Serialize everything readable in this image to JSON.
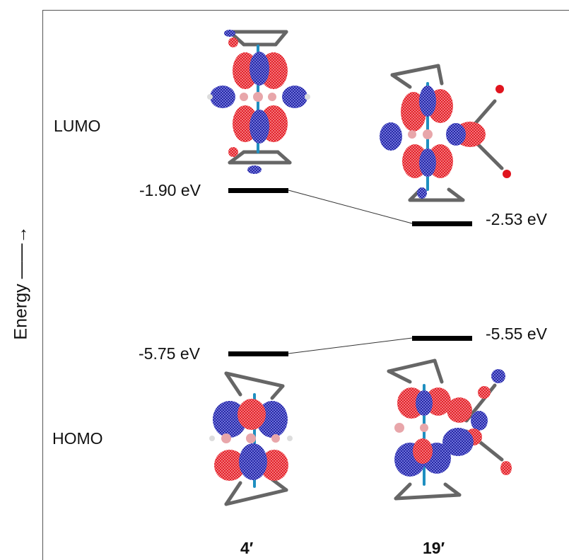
{
  "axis": {
    "label": "Energy ——→"
  },
  "orbitals": {
    "lumo": "LUMO",
    "homo": "HOMO"
  },
  "compounds": [
    "4′",
    "19′"
  ],
  "levels": {
    "lumo_4": "-1.90 eV",
    "lumo_19": "-2.53 eV",
    "homo_4": "-5.75 eV",
    "homo_19": "-5.55 eV"
  },
  "colors": {
    "lobe_red": "#e0141e",
    "lobe_blue": "#1c1e9c",
    "carbon": "#777777",
    "boron": "#e8a6aa",
    "metal": "#1f8fc0",
    "level_bar": "#000000"
  }
}
